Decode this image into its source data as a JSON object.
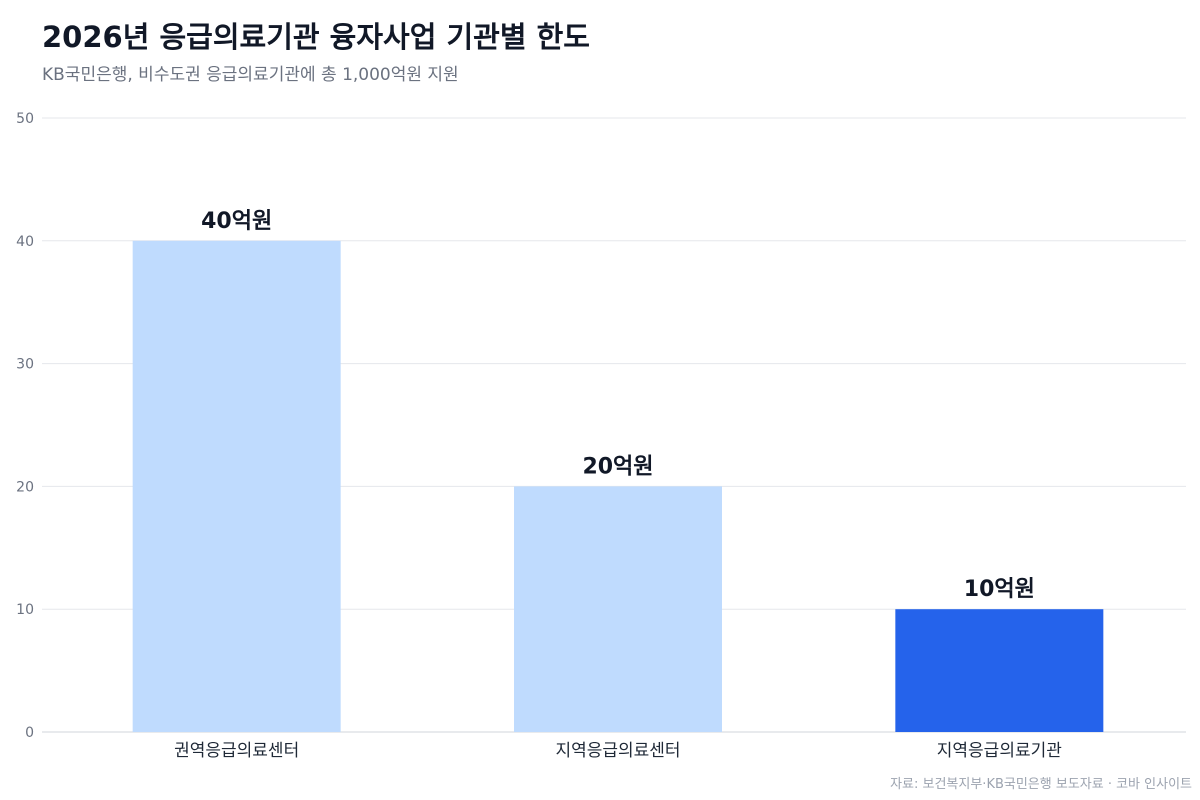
{
  "header": {
    "title": "2026년 응급의료기관 융자사업 기관별 한도",
    "subtitle": "KB국민은행, 비수도권 응급의료기관에 총 1,000억원 지원"
  },
  "footer": {
    "source": "자료: 보건복지부·KB국민은행 보도자료 · 코바 인사이트"
  },
  "colors": {
    "bar_light": "#bfdbfe",
    "bar_highlight": "#2563eb",
    "grid": "#e5e7eb",
    "axis_text": "#6b7280",
    "label_text": "#111827"
  },
  "chart_data": {
    "type": "bar",
    "title": "2026년 응급의료기관 융자사업 기관별 한도",
    "subtitle": "KB국민은행, 비수도권 응급의료기관에 총 1,000억원 지원",
    "xlabel": "",
    "ylabel": "",
    "categories": [
      "권역응급의료센터",
      "지역응급의료센터",
      "지역응급의료기관"
    ],
    "values": [
      40,
      20,
      10
    ],
    "data_labels": [
      "40억원",
      "20억원",
      "10억원"
    ],
    "highlight_index": 2,
    "ylim": [
      0,
      50
    ],
    "yticks": [
      0,
      10,
      20,
      30,
      40,
      50
    ],
    "grid": true,
    "legend": "none"
  }
}
